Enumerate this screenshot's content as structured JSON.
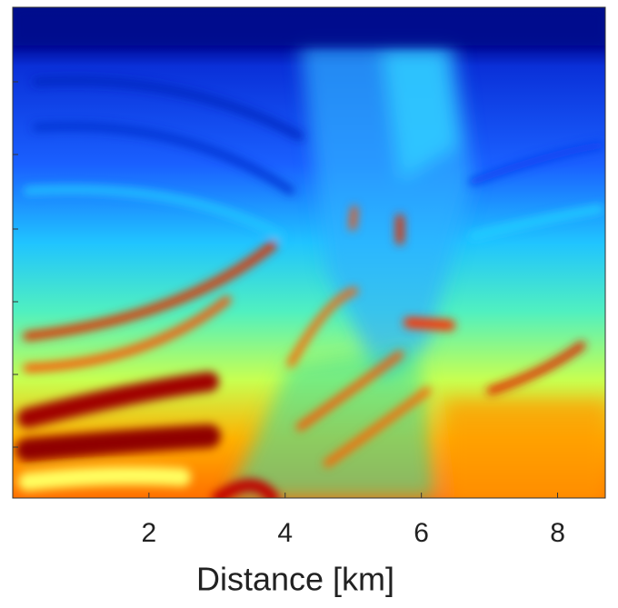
{
  "chart_data": {
    "type": "image",
    "xlabel": "Distance [km]",
    "xlim": [
      0,
      8.7
    ],
    "xticks": [
      2,
      4,
      6,
      8
    ]
  }
}
